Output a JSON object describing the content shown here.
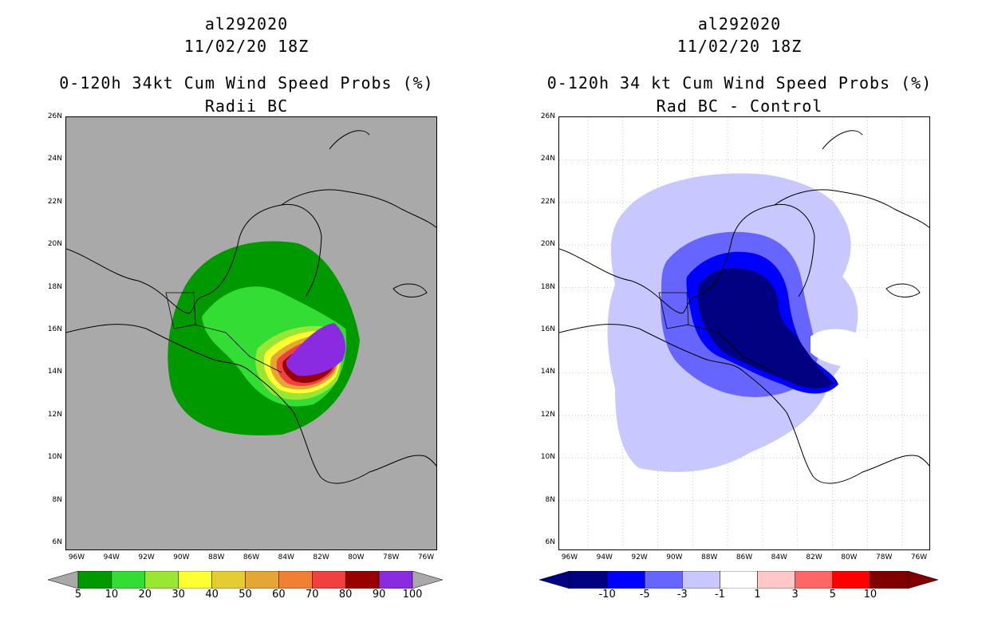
{
  "left": {
    "title1": "al292020",
    "title2": "11/02/20 18Z",
    "title3": "0-120h 34kt Cum Wind Speed Probs (%)",
    "title4": "Radii BC",
    "background_color": "#a9a9a9",
    "colorbar": {
      "colors": [
        "#009900",
        "#33dd33",
        "#99e633",
        "#ffff33",
        "#e6cc33",
        "#e6a633",
        "#f08033",
        "#f04040",
        "#990000",
        "#8a2be2"
      ],
      "labels": [
        "5",
        "10",
        "20",
        "30",
        "40",
        "50",
        "60",
        "70",
        "80",
        "90",
        "100"
      ]
    }
  },
  "right": {
    "title1": "al292020",
    "title2": "11/02/20 18Z",
    "title3": "0-120h 34 kt Cum Wind Speed Probs (%)",
    "title4": "Rad BC - Control",
    "background_color": "#ffffff",
    "colorbar": {
      "colors": [
        "#000080",
        "#0000ff",
        "#6666ff",
        "#c8c8ff",
        "#ffffff",
        "#ffc8c8",
        "#ff6666",
        "#ff0000",
        "#800000"
      ],
      "labels": [
        "-10",
        "-5",
        "-3",
        "-1",
        "1",
        "3",
        "5",
        "10"
      ]
    }
  },
  "axes": {
    "lat_labels": [
      "26N",
      "24N",
      "22N",
      "20N",
      "18N",
      "16N",
      "14N",
      "12N",
      "10N",
      "8N",
      "6N"
    ],
    "lon_labels": [
      "96W",
      "94W",
      "92W",
      "90W",
      "88W",
      "86W",
      "84W",
      "82W",
      "80W",
      "78W",
      "76W"
    ]
  }
}
